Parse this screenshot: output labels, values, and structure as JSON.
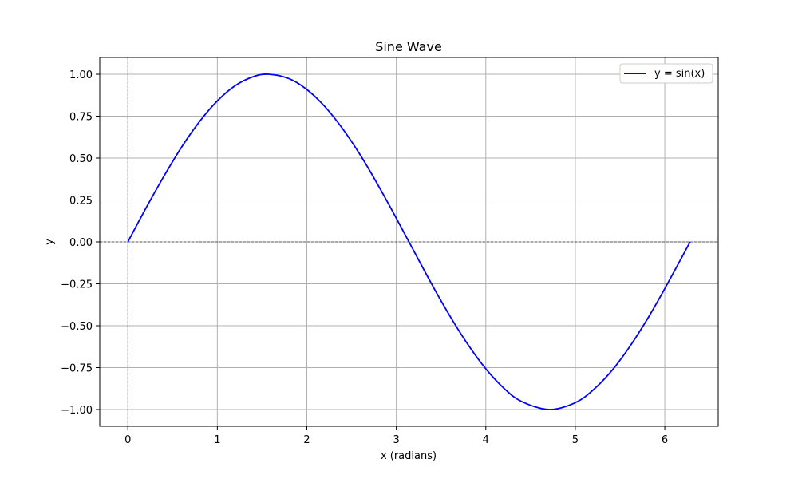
{
  "chart_data": {
    "type": "line",
    "title": "Sine Wave",
    "xlabel": "x (radians)",
    "ylabel": "y",
    "xlim": [
      -0.314,
      6.597
    ],
    "ylim": [
      -1.1,
      1.1
    ],
    "x_ticks": [
      0,
      1,
      2,
      3,
      4,
      5,
      6
    ],
    "x_tick_labels": [
      "0",
      "1",
      "2",
      "3",
      "4",
      "5",
      "6"
    ],
    "y_ticks": [
      -1.0,
      -0.75,
      -0.5,
      -0.25,
      0.0,
      0.25,
      0.5,
      0.75,
      1.0
    ],
    "y_tick_labels": [
      "−1.00",
      "−0.75",
      "−0.50",
      "−0.25",
      "0.00",
      "0.25",
      "0.50",
      "0.75",
      "1.00"
    ],
    "grid": true,
    "reference_lines": [
      {
        "axis": "y",
        "value": 0,
        "style": "dashed",
        "color": "#000000"
      },
      {
        "axis": "x",
        "value": 0,
        "style": "dashed",
        "color": "#000000"
      }
    ],
    "legend_position": "top-right",
    "series": [
      {
        "name": "y = sin(x)",
        "color": "#0000ff",
        "x": [
          0,
          0.2,
          0.4,
          0.6,
          0.8,
          1.0,
          1.2,
          1.4,
          1.5708,
          1.8,
          2.0,
          2.2,
          2.4,
          2.6,
          2.8,
          3.0,
          3.1416,
          3.4,
          3.6,
          3.8,
          4.0,
          4.2,
          4.4,
          4.7124,
          5.0,
          5.2,
          5.4,
          5.6,
          5.8,
          6.0,
          6.2832
        ],
        "y": [
          0.0,
          0.199,
          0.389,
          0.565,
          0.717,
          0.841,
          0.932,
          0.985,
          1.0,
          0.974,
          0.909,
          0.808,
          0.675,
          0.516,
          0.335,
          0.141,
          0.0,
          -0.256,
          -0.443,
          -0.612,
          -0.757,
          -0.872,
          -0.952,
          -1.0,
          -0.959,
          -0.883,
          -0.773,
          -0.631,
          -0.465,
          -0.279,
          0.0
        ]
      }
    ]
  }
}
